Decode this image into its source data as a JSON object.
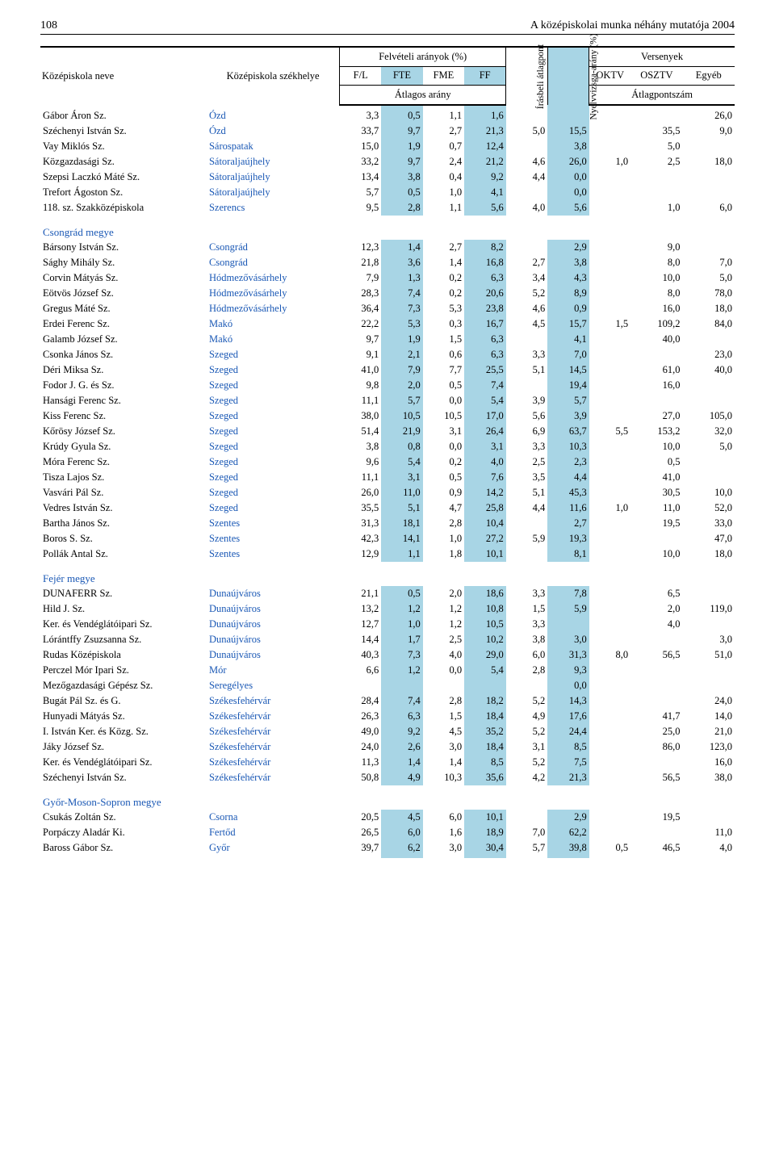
{
  "page_number": "108",
  "page_title": "A középiskolai munka néhány mutatója 2004",
  "colors": {
    "highlight": "#a8d5e5",
    "link": "#1a58b5"
  },
  "headers": {
    "school_name": "Középiskola neve",
    "school_loc": "Középiskola székhelye",
    "felv_group": "Felvételi arányok (%)",
    "fl": "F/L",
    "fte": "FTE",
    "fme": "FME",
    "ff": "FF",
    "avg_ratio": "Átlagos arány",
    "irasbeli": "Írásbeli átlagpont",
    "nyelvvizsga": "Nyelvvizsga-arány (%)",
    "versenyek": "Versenyek",
    "oktv": "OKTV",
    "osztv": "OSZTV",
    "egyeb": "Egyéb",
    "avg_points": "Átlagpontszám"
  },
  "sections": [
    {
      "county": null,
      "rows": [
        {
          "name": "Gábor Áron Sz.",
          "loc": "Ózd",
          "v": [
            "3,3",
            "0,5",
            "1,1",
            "1,6",
            "",
            "",
            "",
            "",
            "26,0"
          ]
        },
        {
          "name": "Széchenyi István Sz.",
          "loc": "Ózd",
          "v": [
            "33,7",
            "9,7",
            "2,7",
            "21,3",
            "5,0",
            "15,5",
            "",
            "35,5",
            "9,0"
          ]
        },
        {
          "name": "Vay Miklós Sz.",
          "loc": "Sárospatak",
          "v": [
            "15,0",
            "1,9",
            "0,7",
            "12,4",
            "",
            "3,8",
            "",
            "5,0",
            ""
          ]
        },
        {
          "name": "Közgazdasági Sz.",
          "loc": "Sátoraljaújhely",
          "v": [
            "33,2",
            "9,7",
            "2,4",
            "21,2",
            "4,6",
            "26,0",
            "1,0",
            "2,5",
            "18,0"
          ]
        },
        {
          "name": "Szepsi Laczkó Máté Sz.",
          "loc": "Sátoraljaújhely",
          "v": [
            "13,4",
            "3,8",
            "0,4",
            "9,2",
            "4,4",
            "0,0",
            "",
            "",
            ""
          ]
        },
        {
          "name": "Trefort Ágoston Sz.",
          "loc": "Sátoraljaújhely",
          "v": [
            "5,7",
            "0,5",
            "1,0",
            "4,1",
            "",
            "0,0",
            "",
            "",
            ""
          ]
        },
        {
          "name": "118. sz. Szakközépiskola",
          "loc": "Szerencs",
          "v": [
            "9,5",
            "2,8",
            "1,1",
            "5,6",
            "4,0",
            "5,6",
            "",
            "1,0",
            "6,0"
          ]
        }
      ]
    },
    {
      "county": "Csongrád megye",
      "rows": [
        {
          "name": "Bársony István Sz.",
          "loc": "Csongrád",
          "v": [
            "12,3",
            "1,4",
            "2,7",
            "8,2",
            "",
            "2,9",
            "",
            "9,0",
            ""
          ]
        },
        {
          "name": "Sághy Mihály Sz.",
          "loc": "Csongrád",
          "v": [
            "21,8",
            "3,6",
            "1,4",
            "16,8",
            "2,7",
            "3,8",
            "",
            "8,0",
            "7,0"
          ]
        },
        {
          "name": "Corvin Mátyás Sz.",
          "loc": "Hódmezővásárhely",
          "v": [
            "7,9",
            "1,3",
            "0,2",
            "6,3",
            "3,4",
            "4,3",
            "",
            "10,0",
            "5,0"
          ]
        },
        {
          "name": "Eötvös József Sz.",
          "loc": "Hódmezővásárhely",
          "v": [
            "28,3",
            "7,4",
            "0,2",
            "20,6",
            "5,2",
            "8,9",
            "",
            "8,0",
            "78,0"
          ]
        },
        {
          "name": "Gregus Máté Sz.",
          "loc": "Hódmezővásárhely",
          "v": [
            "36,4",
            "7,3",
            "5,3",
            "23,8",
            "4,6",
            "0,9",
            "",
            "16,0",
            "18,0"
          ]
        },
        {
          "name": "Erdei Ferenc Sz.",
          "loc": "Makó",
          "v": [
            "22,2",
            "5,3",
            "0,3",
            "16,7",
            "4,5",
            "15,7",
            "1,5",
            "109,2",
            "84,0"
          ]
        },
        {
          "name": "Galamb József Sz.",
          "loc": "Makó",
          "v": [
            "9,7",
            "1,9",
            "1,5",
            "6,3",
            "",
            "4,1",
            "",
            "40,0",
            ""
          ]
        },
        {
          "name": "Csonka János Sz.",
          "loc": "Szeged",
          "v": [
            "9,1",
            "2,1",
            "0,6",
            "6,3",
            "3,3",
            "7,0",
            "",
            "",
            "23,0"
          ]
        },
        {
          "name": "Déri Miksa Sz.",
          "loc": "Szeged",
          "v": [
            "41,0",
            "7,9",
            "7,7",
            "25,5",
            "5,1",
            "14,5",
            "",
            "61,0",
            "40,0"
          ]
        },
        {
          "name": "Fodor J. G. és Sz.",
          "loc": "Szeged",
          "v": [
            "9,8",
            "2,0",
            "0,5",
            "7,4",
            "",
            "19,4",
            "",
            "16,0",
            ""
          ]
        },
        {
          "name": "Hansági Ferenc Sz.",
          "loc": "Szeged",
          "v": [
            "11,1",
            "5,7",
            "0,0",
            "5,4",
            "3,9",
            "5,7",
            "",
            "",
            ""
          ]
        },
        {
          "name": "Kiss Ferenc Sz.",
          "loc": "Szeged",
          "v": [
            "38,0",
            "10,5",
            "10,5",
            "17,0",
            "5,6",
            "3,9",
            "",
            "27,0",
            "105,0"
          ]
        },
        {
          "name": "Kőrösy József Sz.",
          "loc": "Szeged",
          "v": [
            "51,4",
            "21,9",
            "3,1",
            "26,4",
            "6,9",
            "63,7",
            "5,5",
            "153,2",
            "32,0"
          ]
        },
        {
          "name": "Krúdy Gyula Sz.",
          "loc": "Szeged",
          "v": [
            "3,8",
            "0,8",
            "0,0",
            "3,1",
            "3,3",
            "10,3",
            "",
            "10,0",
            "5,0"
          ]
        },
        {
          "name": "Móra Ferenc Sz.",
          "loc": "Szeged",
          "v": [
            "9,6",
            "5,4",
            "0,2",
            "4,0",
            "2,5",
            "2,3",
            "",
            "0,5",
            ""
          ]
        },
        {
          "name": "Tisza Lajos Sz.",
          "loc": "Szeged",
          "v": [
            "11,1",
            "3,1",
            "0,5",
            "7,6",
            "3,5",
            "4,4",
            "",
            "41,0",
            ""
          ]
        },
        {
          "name": "Vasvári Pál Sz.",
          "loc": "Szeged",
          "v": [
            "26,0",
            "11,0",
            "0,9",
            "14,2",
            "5,1",
            "45,3",
            "",
            "30,5",
            "10,0"
          ]
        },
        {
          "name": "Vedres István Sz.",
          "loc": "Szeged",
          "v": [
            "35,5",
            "5,1",
            "4,7",
            "25,8",
            "4,4",
            "11,6",
            "1,0",
            "11,0",
            "52,0"
          ]
        },
        {
          "name": "Bartha János Sz.",
          "loc": "Szentes",
          "v": [
            "31,3",
            "18,1",
            "2,8",
            "10,4",
            "",
            "2,7",
            "",
            "19,5",
            "33,0"
          ]
        },
        {
          "name": "Boros S. Sz.",
          "loc": "Szentes",
          "v": [
            "42,3",
            "14,1",
            "1,0",
            "27,2",
            "5,9",
            "19,3",
            "",
            "",
            "47,0"
          ]
        },
        {
          "name": "Pollák Antal Sz.",
          "loc": "Szentes",
          "v": [
            "12,9",
            "1,1",
            "1,8",
            "10,1",
            "",
            "8,1",
            "",
            "10,0",
            "18,0"
          ]
        }
      ]
    },
    {
      "county": "Fejér megye",
      "rows": [
        {
          "name": "DUNAFERR Sz.",
          "loc": "Dunaújváros",
          "v": [
            "21,1",
            "0,5",
            "2,0",
            "18,6",
            "3,3",
            "7,8",
            "",
            "6,5",
            ""
          ]
        },
        {
          "name": "Hild J. Sz.",
          "loc": "Dunaújváros",
          "v": [
            "13,2",
            "1,2",
            "1,2",
            "10,8",
            "1,5",
            "5,9",
            "",
            "2,0",
            "119,0"
          ]
        },
        {
          "name": "Ker. és Vendéglátóipari Sz.",
          "loc": "Dunaújváros",
          "v": [
            "12,7",
            "1,0",
            "1,2",
            "10,5",
            "3,3",
            "",
            "",
            "4,0",
            ""
          ]
        },
        {
          "name": "Lórántffy Zsuzsanna Sz.",
          "loc": "Dunaújváros",
          "v": [
            "14,4",
            "1,7",
            "2,5",
            "10,2",
            "3,8",
            "3,0",
            "",
            "",
            "3,0"
          ]
        },
        {
          "name": "Rudas Középiskola",
          "loc": "Dunaújváros",
          "v": [
            "40,3",
            "7,3",
            "4,0",
            "29,0",
            "6,0",
            "31,3",
            "8,0",
            "56,5",
            "51,0"
          ]
        },
        {
          "name": "Perczel Mór Ipari Sz.",
          "loc": "Mór",
          "v": [
            "6,6",
            "1,2",
            "0,0",
            "5,4",
            "2,8",
            "9,3",
            "",
            "",
            ""
          ]
        },
        {
          "name": "Mezőgazdasági Gépész Sz.",
          "loc": "Seregélyes",
          "v": [
            "",
            "",
            "",
            "",
            "",
            "0,0",
            "",
            "",
            ""
          ]
        },
        {
          "name": "Bugát Pál Sz. és G.",
          "loc": "Székesfehérvár",
          "v": [
            "28,4",
            "7,4",
            "2,8",
            "18,2",
            "5,2",
            "14,3",
            "",
            "",
            "24,0"
          ]
        },
        {
          "name": "Hunyadi Mátyás Sz.",
          "loc": "Székesfehérvár",
          "v": [
            "26,3",
            "6,3",
            "1,5",
            "18,4",
            "4,9",
            "17,6",
            "",
            "41,7",
            "14,0"
          ]
        },
        {
          "name": "I. István Ker. és Közg. Sz.",
          "loc": "Székesfehérvár",
          "v": [
            "49,0",
            "9,2",
            "4,5",
            "35,2",
            "5,2",
            "24,4",
            "",
            "25,0",
            "21,0"
          ]
        },
        {
          "name": "Jáky József Sz.",
          "loc": "Székesfehérvár",
          "v": [
            "24,0",
            "2,6",
            "3,0",
            "18,4",
            "3,1",
            "8,5",
            "",
            "86,0",
            "123,0"
          ]
        },
        {
          "name": "Ker. és Vendéglátóipari Sz.",
          "loc": "Székesfehérvár",
          "v": [
            "11,3",
            "1,4",
            "1,4",
            "8,5",
            "5,2",
            "7,5",
            "",
            "",
            "16,0"
          ]
        },
        {
          "name": "Széchenyi István Sz.",
          "loc": "Székesfehérvár",
          "v": [
            "50,8",
            "4,9",
            "10,3",
            "35,6",
            "4,2",
            "21,3",
            "",
            "56,5",
            "38,0"
          ]
        }
      ]
    },
    {
      "county": "Győr-Moson-Sopron megye",
      "rows": [
        {
          "name": "Csukás Zoltán Sz.",
          "loc": "Csorna",
          "v": [
            "20,5",
            "4,5",
            "6,0",
            "10,1",
            "",
            "2,9",
            "",
            "19,5",
            ""
          ]
        },
        {
          "name": "Porpáczy Aladár Ki.",
          "loc": "Fertőd",
          "v": [
            "26,5",
            "6,0",
            "1,6",
            "18,9",
            "7,0",
            "62,2",
            "",
            "",
            "11,0"
          ]
        },
        {
          "name": "Baross Gábor Sz.",
          "loc": "Győr",
          "v": [
            "39,7",
            "6,2",
            "3,0",
            "30,4",
            "5,7",
            "39,8",
            "0,5",
            "46,5",
            "4,0"
          ]
        }
      ]
    }
  ]
}
